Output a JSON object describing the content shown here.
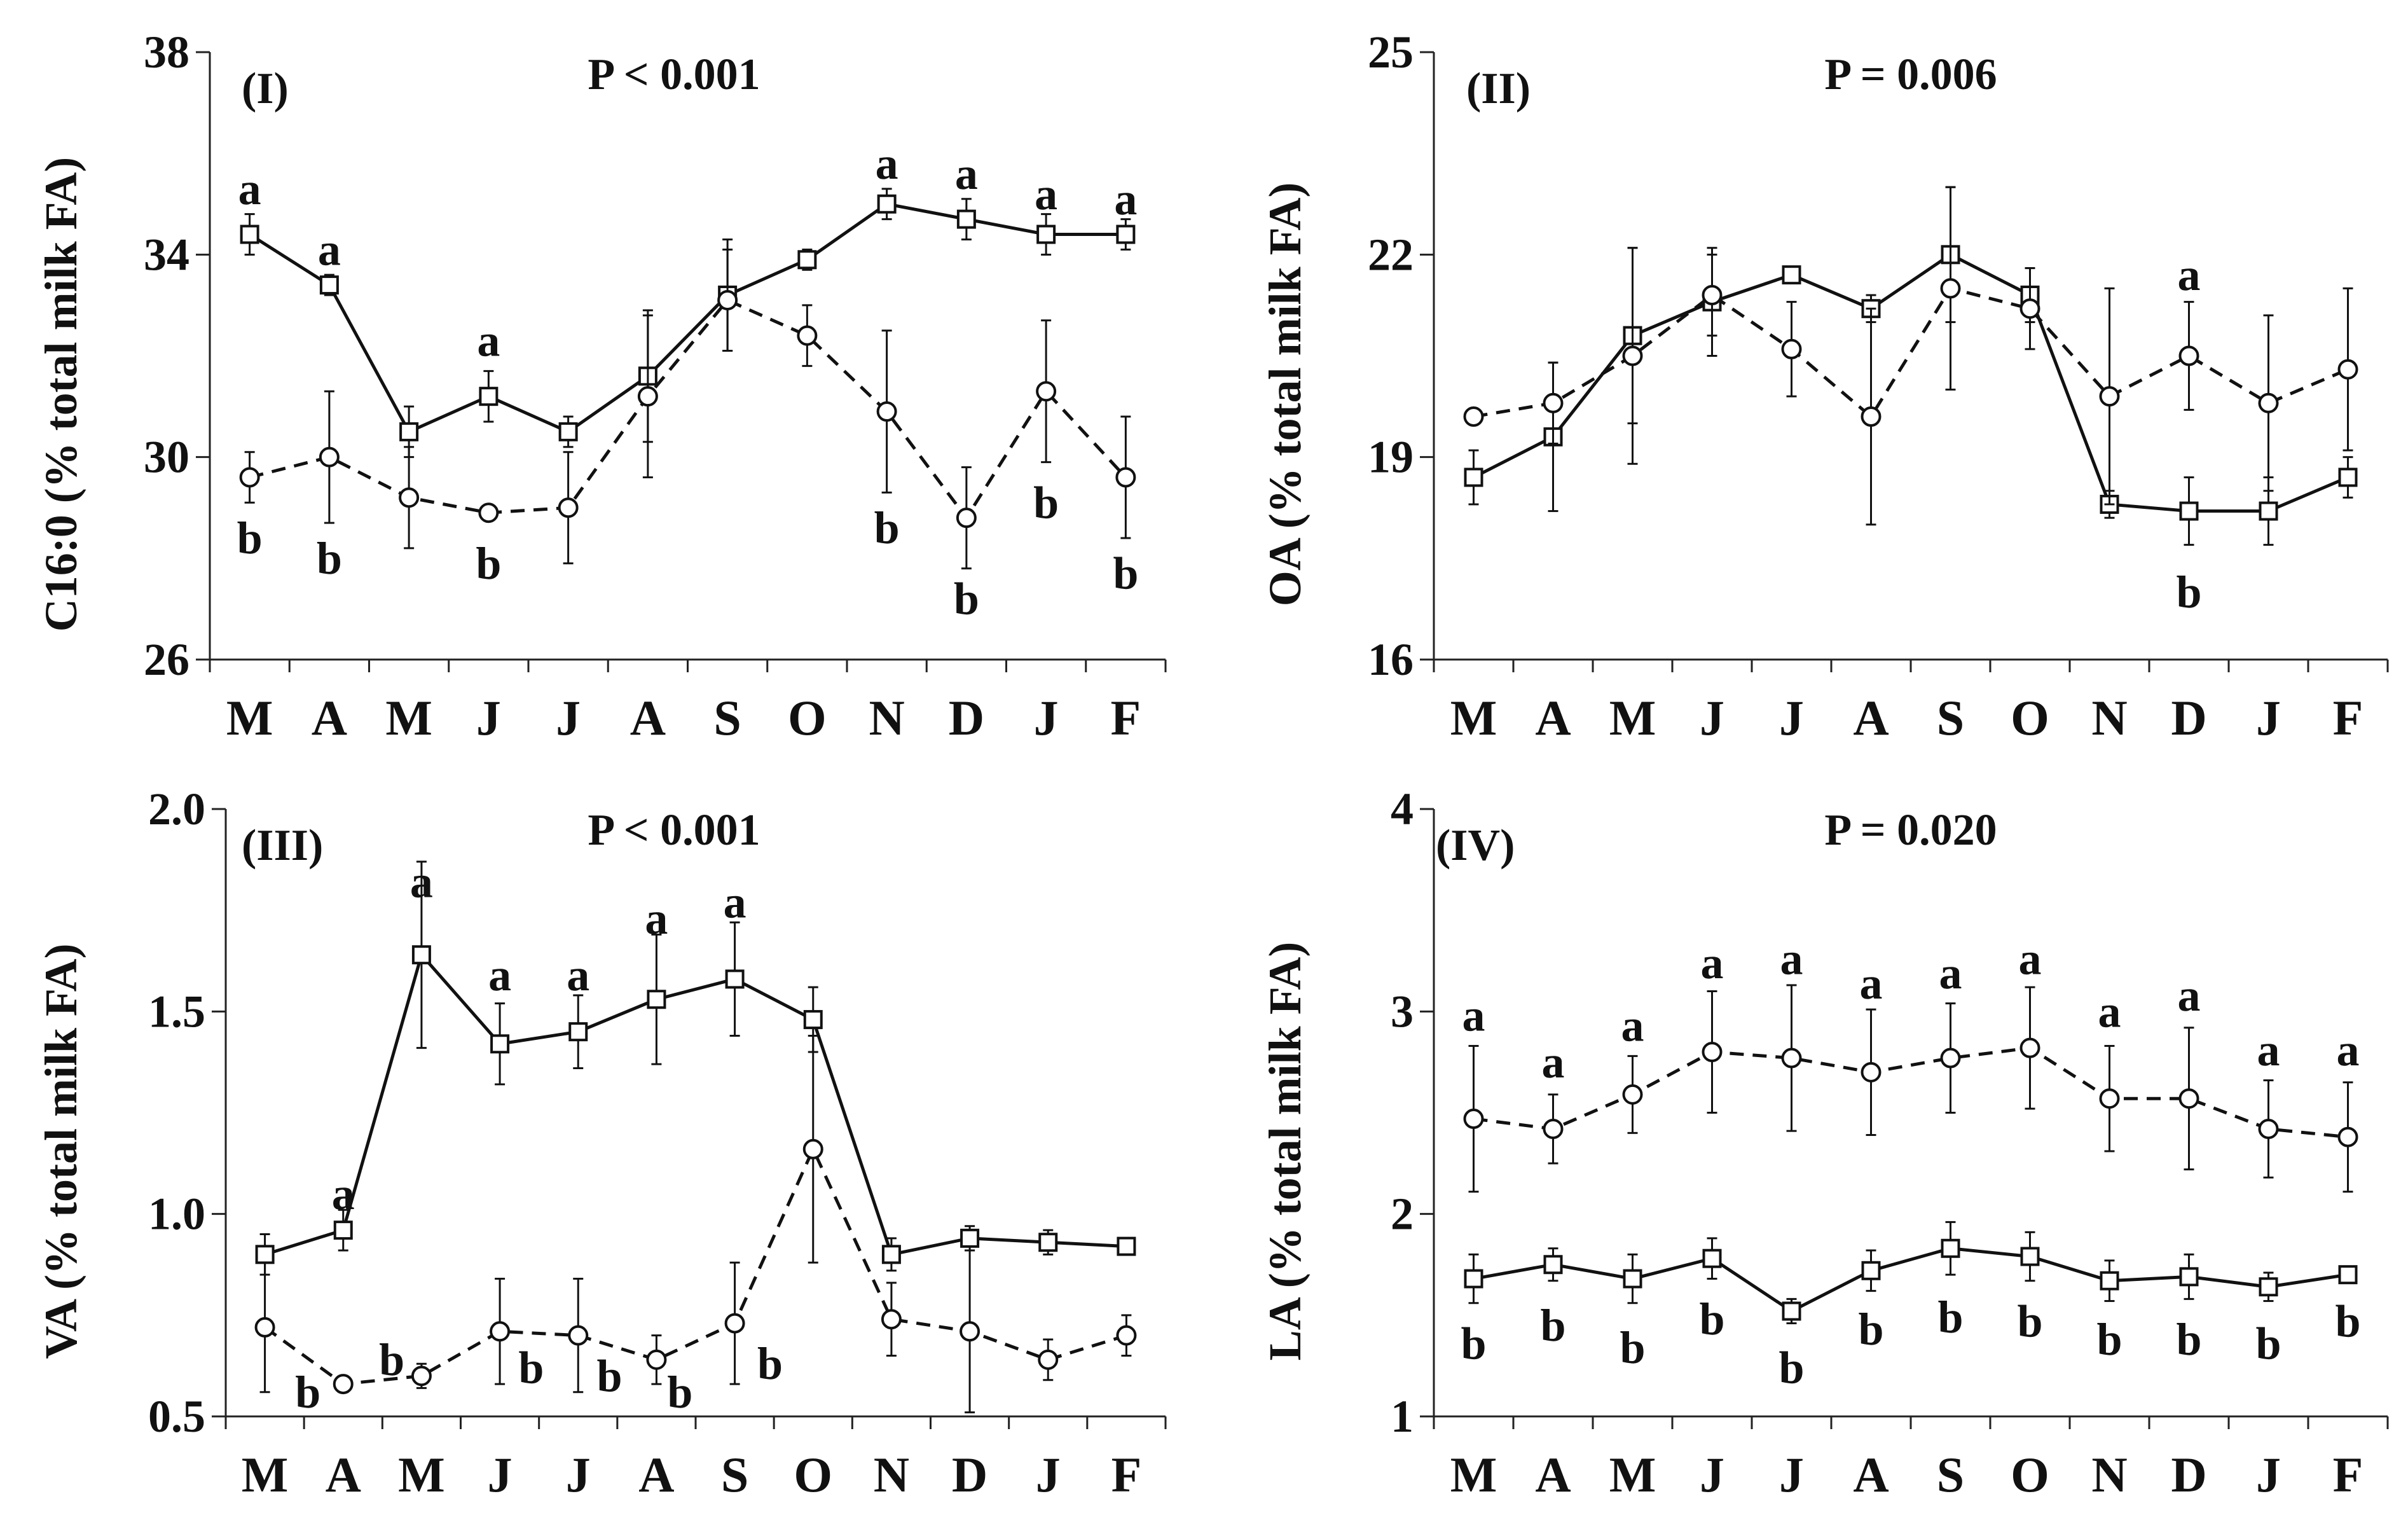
{
  "chart_data": [
    {
      "type": "line",
      "panel_label": "(I)",
      "p_value": "P < 0.001",
      "ylabel": "C16:0 (% total milk FA)",
      "ylim": [
        26,
        38
      ],
      "yticks": [
        "26",
        "30",
        "34",
        "38"
      ],
      "categories": [
        "M",
        "A",
        "M",
        "J",
        "J",
        "A",
        "S",
        "O",
        "N",
        "D",
        "J",
        "F"
      ],
      "series": [
        {
          "name": "square",
          "style": "solid",
          "marker": "square",
          "values": [
            34.4,
            33.4,
            30.5,
            31.2,
            30.5,
            31.6,
            33.2,
            33.9,
            35.0,
            34.7,
            34.4,
            34.4
          ],
          "errors": [
            0.4,
            0.2,
            0.5,
            0.5,
            0.3,
            1.3,
            1.1,
            0.2,
            0.3,
            0.4,
            0.4,
            0.3
          ]
        },
        {
          "name": "circle",
          "style": "dashed",
          "marker": "circle",
          "values": [
            29.6,
            30.0,
            29.2,
            28.9,
            29.0,
            31.2,
            33.1,
            32.4,
            30.9,
            28.8,
            31.3,
            29.6
          ],
          "errors": [
            0.5,
            1.3,
            1.0,
            0.1,
            1.1,
            1.6,
            1.0,
            0.6,
            1.6,
            1.0,
            1.4,
            1.2
          ]
        }
      ],
      "annotations": [
        {
          "text": "a",
          "index": 0,
          "value": 35.3
        },
        {
          "text": "a",
          "index": 1,
          "value": 34.1
        },
        {
          "text": "a",
          "index": 3,
          "value": 32.3
        },
        {
          "text": "a",
          "index": 8,
          "value": 35.8
        },
        {
          "text": "a",
          "index": 9,
          "value": 35.6
        },
        {
          "text": "a",
          "index": 10,
          "value": 35.2
        },
        {
          "text": "a",
          "index": 11,
          "value": 35.1
        },
        {
          "text": "b",
          "index": 0,
          "value": 28.4
        },
        {
          "text": "b",
          "index": 1,
          "value": 28.0
        },
        {
          "text": "b",
          "index": 3,
          "value": 27.9
        },
        {
          "text": "b",
          "index": 8,
          "value": 28.6
        },
        {
          "text": "b",
          "index": 9,
          "value": 27.2
        },
        {
          "text": "b",
          "index": 10,
          "value": 29.1
        },
        {
          "text": "b",
          "index": 11,
          "value": 27.7
        }
      ]
    },
    {
      "type": "line",
      "panel_label": "(II)",
      "p_value": "P = 0.006",
      "ylabel": "OA (% total milk FA)",
      "ylim": [
        16,
        25
      ],
      "yticks": [
        "16",
        "19",
        "22",
        "25"
      ],
      "categories": [
        "M",
        "A",
        "M",
        "J",
        "J",
        "A",
        "S",
        "O",
        "N",
        "D",
        "J",
        "F"
      ],
      "series": [
        {
          "name": "square",
          "style": "solid",
          "marker": "square",
          "values": [
            18.7,
            19.3,
            20.8,
            21.3,
            21.7,
            21.2,
            22.0,
            21.4,
            18.3,
            18.2,
            18.2,
            18.7
          ],
          "errors": [
            0.4,
            1.1,
            1.3,
            0.8,
            0.1,
            0.2,
            1.0,
            0.4,
            0.2,
            0.5,
            0.5,
            0.3
          ]
        },
        {
          "name": "circle",
          "style": "dashed",
          "marker": "circle",
          "values": [
            19.6,
            19.8,
            20.5,
            21.4,
            20.6,
            19.6,
            21.5,
            21.2,
            19.9,
            20.5,
            19.8,
            20.3
          ],
          "errors": [
            0.1,
            0.6,
            1.6,
            0.6,
            0.7,
            1.6,
            1.5,
            0.6,
            1.6,
            0.8,
            1.3,
            1.2
          ]
        }
      ],
      "annotations": [
        {
          "text": "a",
          "index": 9,
          "value": 21.7
        },
        {
          "text": "b",
          "index": 9,
          "value": 17.0
        }
      ]
    },
    {
      "type": "line",
      "panel_label": "(III)",
      "p_value": "P < 0.001",
      "ylabel": "VA (% total milk FA)",
      "ylim": [
        0.5,
        2.0
      ],
      "yticks": [
        "0.5",
        "1.0",
        "1.5",
        "2.0"
      ],
      "categories": [
        "M",
        "A",
        "M",
        "J",
        "J",
        "A",
        "S",
        "O",
        "N",
        "D",
        "J",
        "F"
      ],
      "series": [
        {
          "name": "square",
          "style": "solid",
          "marker": "square",
          "values": [
            0.9,
            0.96,
            1.64,
            1.42,
            1.45,
            1.53,
            1.58,
            1.48,
            0.9,
            0.94,
            0.93,
            0.92
          ],
          "errors": [
            0.05,
            0.05,
            0.23,
            0.1,
            0.09,
            0.16,
            0.14,
            0.08,
            0.04,
            0.03,
            0.03,
            0.01
          ]
        },
        {
          "name": "circle",
          "style": "dashed",
          "marker": "circle",
          "values": [
            0.72,
            0.58,
            0.6,
            0.71,
            0.7,
            0.64,
            0.73,
            1.16,
            0.74,
            0.71,
            0.64,
            0.7
          ],
          "errors": [
            0.16,
            0.02,
            0.03,
            0.13,
            0.14,
            0.06,
            0.15,
            0.28,
            0.09,
            0.2,
            0.05,
            0.05
          ]
        }
      ],
      "annotations": [
        {
          "text": "a",
          "index": 1,
          "value": 1.05
        },
        {
          "text": "a",
          "index": 2,
          "value": 1.82
        },
        {
          "text": "a",
          "index": 3,
          "value": 1.59
        },
        {
          "text": "a",
          "index": 4,
          "value": 1.59
        },
        {
          "text": "a",
          "index": 5,
          "value": 1.73
        },
        {
          "text": "a",
          "index": 6,
          "value": 1.77
        },
        {
          "text": "b",
          "index": 1,
          "value": 0.56,
          "dx": -0.45
        },
        {
          "text": "b",
          "index": 2,
          "value": 0.64,
          "dx": -0.38
        },
        {
          "text": "b",
          "index": 3,
          "value": 0.62,
          "dx": 0.4
        },
        {
          "text": "b",
          "index": 4,
          "value": 0.6,
          "dx": 0.4
        },
        {
          "text": "b",
          "index": 5,
          "value": 0.56,
          "dx": 0.3
        },
        {
          "text": "b",
          "index": 6,
          "value": 0.63,
          "dx": 0.45
        }
      ]
    },
    {
      "type": "line",
      "panel_label": "(IV)",
      "p_value": "P = 0.020",
      "ylabel": "LA (% total milk FA)",
      "ylim": [
        1,
        4
      ],
      "yticks": [
        "1",
        "2",
        "3",
        "4"
      ],
      "categories": [
        "M",
        "A",
        "M",
        "J",
        "J",
        "A",
        "S",
        "O",
        "N",
        "D",
        "J",
        "F"
      ],
      "series": [
        {
          "name": "square",
          "style": "solid",
          "marker": "square",
          "values": [
            1.68,
            1.75,
            1.68,
            1.78,
            1.52,
            1.72,
            1.83,
            1.79,
            1.67,
            1.69,
            1.64,
            1.7
          ],
          "errors": [
            0.12,
            0.08,
            0.12,
            0.1,
            0.06,
            0.1,
            0.13,
            0.12,
            0.1,
            0.11,
            0.07,
            0.03
          ]
        },
        {
          "name": "circle",
          "style": "dashed",
          "marker": "circle",
          "values": [
            2.47,
            2.42,
            2.59,
            2.8,
            2.77,
            2.7,
            2.77,
            2.82,
            2.57,
            2.57,
            2.42,
            2.38
          ],
          "errors": [
            0.36,
            0.17,
            0.19,
            0.3,
            0.36,
            0.31,
            0.27,
            0.3,
            0.26,
            0.35,
            0.24,
            0.27
          ]
        }
      ],
      "annotations": [
        {
          "text": "a",
          "index": 0,
          "value": 2.98
        },
        {
          "text": "a",
          "index": 1,
          "value": 2.75
        },
        {
          "text": "a",
          "index": 2,
          "value": 2.93
        },
        {
          "text": "a",
          "index": 3,
          "value": 3.24
        },
        {
          "text": "a",
          "index": 4,
          "value": 3.26
        },
        {
          "text": "a",
          "index": 5,
          "value": 3.14
        },
        {
          "text": "a",
          "index": 6,
          "value": 3.19
        },
        {
          "text": "a",
          "index": 7,
          "value": 3.26
        },
        {
          "text": "a",
          "index": 8,
          "value": 3.0
        },
        {
          "text": "a",
          "index": 9,
          "value": 3.08
        },
        {
          "text": "a",
          "index": 10,
          "value": 2.81
        },
        {
          "text": "a",
          "index": 11,
          "value": 2.81
        },
        {
          "text": "b",
          "index": 0,
          "value": 1.36
        },
        {
          "text": "b",
          "index": 1,
          "value": 1.45
        },
        {
          "text": "b",
          "index": 2,
          "value": 1.34
        },
        {
          "text": "b",
          "index": 3,
          "value": 1.48
        },
        {
          "text": "b",
          "index": 4,
          "value": 1.24
        },
        {
          "text": "b",
          "index": 5,
          "value": 1.43
        },
        {
          "text": "b",
          "index": 6,
          "value": 1.49
        },
        {
          "text": "b",
          "index": 7,
          "value": 1.47
        },
        {
          "text": "b",
          "index": 8,
          "value": 1.38
        },
        {
          "text": "b",
          "index": 9,
          "value": 1.38
        },
        {
          "text": "b",
          "index": 10,
          "value": 1.36
        },
        {
          "text": "b",
          "index": 11,
          "value": 1.47
        }
      ]
    }
  ]
}
